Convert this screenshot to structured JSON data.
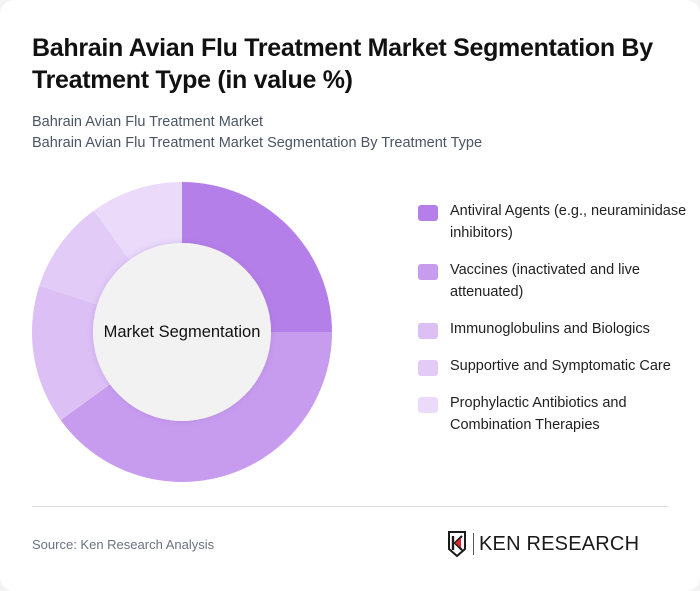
{
  "header": {
    "title": "Bahrain Avian Flu Treatment Market Segmentation By Treatment Type (in value %)",
    "subtitle_line1": "Bahrain Avian Flu Treatment Market",
    "subtitle_line2": "Bahrain Avian Flu Treatment Market Segmentation By Treatment Type"
  },
  "chart": {
    "center_label": "Market Segmentation"
  },
  "legend": {
    "items": [
      {
        "label": "Antiviral Agents (e.g., neuraminidase inhibitors)",
        "color": "#b57fe9"
      },
      {
        "label": "Vaccines (inactivated and live attenuated)",
        "color": "#c79cee"
      },
      {
        "label": "Immunoglobulins and Biologics",
        "color": "#dbbff5"
      },
      {
        "label": "Supportive and Symptomatic Care",
        "color": "#e2cbf7"
      },
      {
        "label": "Prophylactic Antibiotics and Combination Therapies",
        "color": "#ebdafa"
      }
    ]
  },
  "footer": {
    "source": "Source: Ken Research Analysis",
    "brand_name": "KEN RESEARCH",
    "brand_icon": "ken-research-logo-icon"
  },
  "chart_data": {
    "type": "pie",
    "subtype": "donut",
    "title": "Bahrain Avian Flu Treatment Market Segmentation By Treatment Type (in value %)",
    "subtitle": "Bahrain Avian Flu Treatment Market",
    "center_label": "Market Segmentation",
    "categories": [
      "Antiviral Agents (e.g., neuraminidase inhibitors)",
      "Vaccines (inactivated and live attenuated)",
      "Immunoglobulins and Biologics",
      "Supportive and Symptomatic Care",
      "Prophylactic Antibiotics and Combination Therapies"
    ],
    "values": [
      25,
      40,
      15,
      10,
      10
    ],
    "colors": [
      "#b57fe9",
      "#c79cee",
      "#dbbff5",
      "#e2cbf7",
      "#ebdafa"
    ],
    "unit": "%",
    "start_angle": "12 o'clock, clockwise",
    "legend_position": "right",
    "data_labels": false
  }
}
